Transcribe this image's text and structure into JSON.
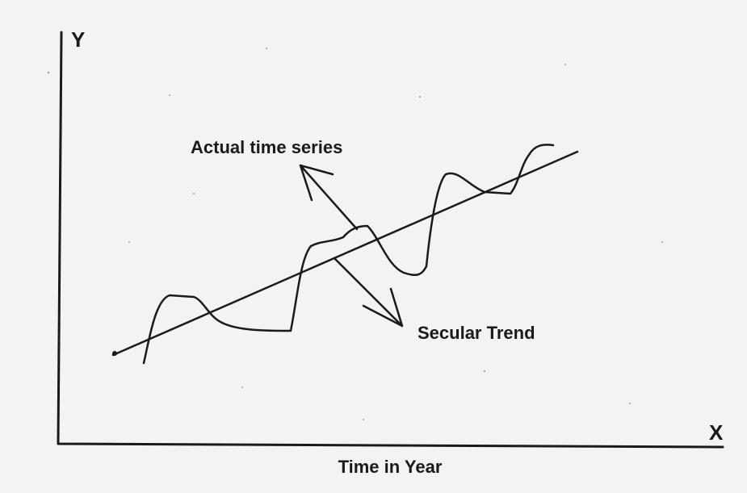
{
  "axes": {
    "y_label": "Y",
    "x_label": "X",
    "x_title": "Time in Year"
  },
  "annotations": {
    "actual": "Actual time series",
    "trend": "Secular Trend"
  }
}
